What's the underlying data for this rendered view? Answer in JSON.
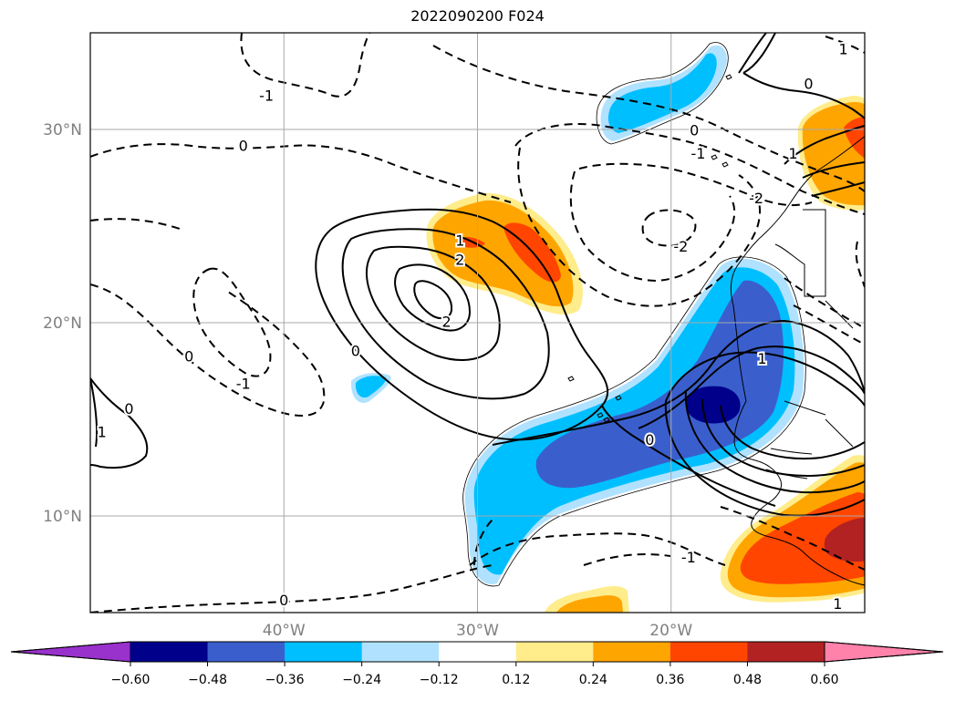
{
  "title": "2022090200 F024",
  "map": {
    "lat_labels": [
      "30°N",
      "20°N",
      "10°N"
    ],
    "lon_labels": [
      "40°W",
      "30°W",
      "20°W"
    ],
    "lat_values": [
      30,
      20,
      10
    ],
    "lon_values": [
      -40,
      -30,
      -20
    ],
    "extent": {
      "lon": [
        -50,
        -10
      ],
      "lat": [
        5,
        35
      ]
    },
    "grid": true,
    "coastlines": true
  },
  "colorbar": {
    "ticks": [
      "−0.60",
      "−0.48",
      "−0.36",
      "−0.24",
      "−0.12",
      "0.12",
      "0.24",
      "0.36",
      "0.48",
      "0.60"
    ],
    "colors": [
      "#9932cc",
      "#00008b",
      "#3a5fcd",
      "#00bfff",
      "#b0e2ff",
      "#ffffff",
      "#ffec8b",
      "#ffa500",
      "#ff4500",
      "#b22222",
      "#ff82ab"
    ],
    "extend": "both"
  },
  "contour_labels": {
    "positive": [
      "0",
      "1",
      "2"
    ],
    "negative": [
      "-1",
      "-2"
    ]
  },
  "contour_label_items": [
    {
      "text": "-1",
      "lon": -40.9,
      "lat": 31.7
    },
    {
      "text": "0",
      "lon": -42.1,
      "lat": 29.1
    },
    {
      "text": "0",
      "lon": -44.9,
      "lat": 18.2
    },
    {
      "text": "-1",
      "lon": -42.1,
      "lat": 16.8
    },
    {
      "text": "0",
      "lon": -48,
      "lat": 15.5
    },
    {
      "text": "1",
      "lon": -49.4,
      "lat": 14.3
    },
    {
      "text": "1",
      "lon": -30.9,
      "lat": 24.2
    },
    {
      "text": "2",
      "lon": -30.9,
      "lat": 23.2
    },
    {
      "text": "2",
      "lon": -31.6,
      "lat": 20
    },
    {
      "text": "0",
      "lon": -36.3,
      "lat": 18.5
    },
    {
      "text": "0",
      "lon": -18.8,
      "lat": 29.9
    },
    {
      "text": "-1",
      "lon": -18.6,
      "lat": 28.7
    },
    {
      "text": "-2",
      "lon": -15.6,
      "lat": 26.4
    },
    {
      "text": "-2",
      "lon": -19.5,
      "lat": 23.9
    },
    {
      "text": "1",
      "lon": -13.7,
      "lat": 28.7
    },
    {
      "text": "0",
      "lon": -12.9,
      "lat": 32.3
    },
    {
      "text": "1",
      "lon": -11.1,
      "lat": 34.1
    },
    {
      "text": "1",
      "lon": -15.3,
      "lat": 18.1
    },
    {
      "text": "0",
      "lon": -21.1,
      "lat": 13.9
    },
    {
      "text": "-1",
      "lon": -19.1,
      "lat": 7.8
    },
    {
      "text": "0",
      "lon": -40,
      "lat": 5.6
    },
    {
      "text": "1",
      "lon": -11.4,
      "lat": 5.4
    }
  ]
}
